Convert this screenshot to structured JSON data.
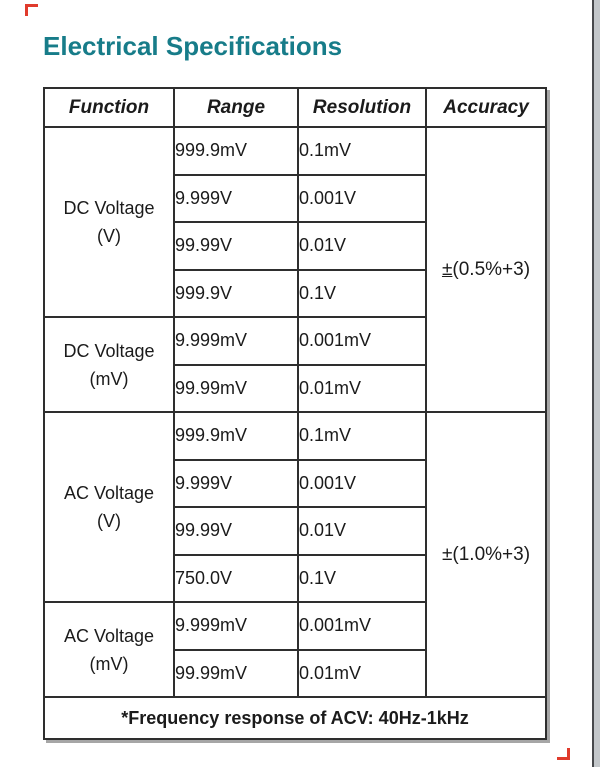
{
  "page": {
    "title": "Electrical Specifications",
    "title_color": "#177c89",
    "corner_marker_color": "#e03b2c",
    "page_edge_color": "#c3c7ca"
  },
  "table": {
    "headers": [
      "Function",
      "Range",
      "Resolution",
      "Accuracy"
    ],
    "sections": [
      {
        "function_line1": "DC Voltage",
        "function_line2": "(V)",
        "rows": [
          [
            "999.9mV",
            "0.1mV"
          ],
          [
            "9.999V",
            "0.001V"
          ],
          [
            "99.99V",
            "0.01V"
          ],
          [
            "999.9V",
            "0.1V"
          ]
        ]
      },
      {
        "function_line1": "DC Voltage",
        "function_line2": "(mV)",
        "rows": [
          [
            "9.999mV",
            "0.001mV"
          ],
          [
            "99.99mV",
            "0.01mV"
          ]
        ]
      },
      {
        "function_line1": "AC Voltage",
        "function_line2": "(V)",
        "rows": [
          [
            "999.9mV",
            "0.1mV"
          ],
          [
            "9.999V",
            "0.001V"
          ],
          [
            "99.99V",
            "0.01V"
          ],
          [
            "750.0V",
            "0.1V"
          ]
        ]
      },
      {
        "function_line1": "AC Voltage",
        "function_line2": "(mV)",
        "rows": [
          [
            "9.999mV",
            "0.001mV"
          ],
          [
            "99.99mV",
            "0.01mV"
          ]
        ]
      }
    ],
    "accuracies": [
      {
        "sign": "±",
        "value": "(0.5%+3)",
        "sign_underlined": true
      },
      {
        "sign": "±",
        "value": "(1.0%+3)",
        "sign_underlined": false
      }
    ],
    "footer_note": "*Frequency response of ACV: 40Hz-1kHz"
  }
}
